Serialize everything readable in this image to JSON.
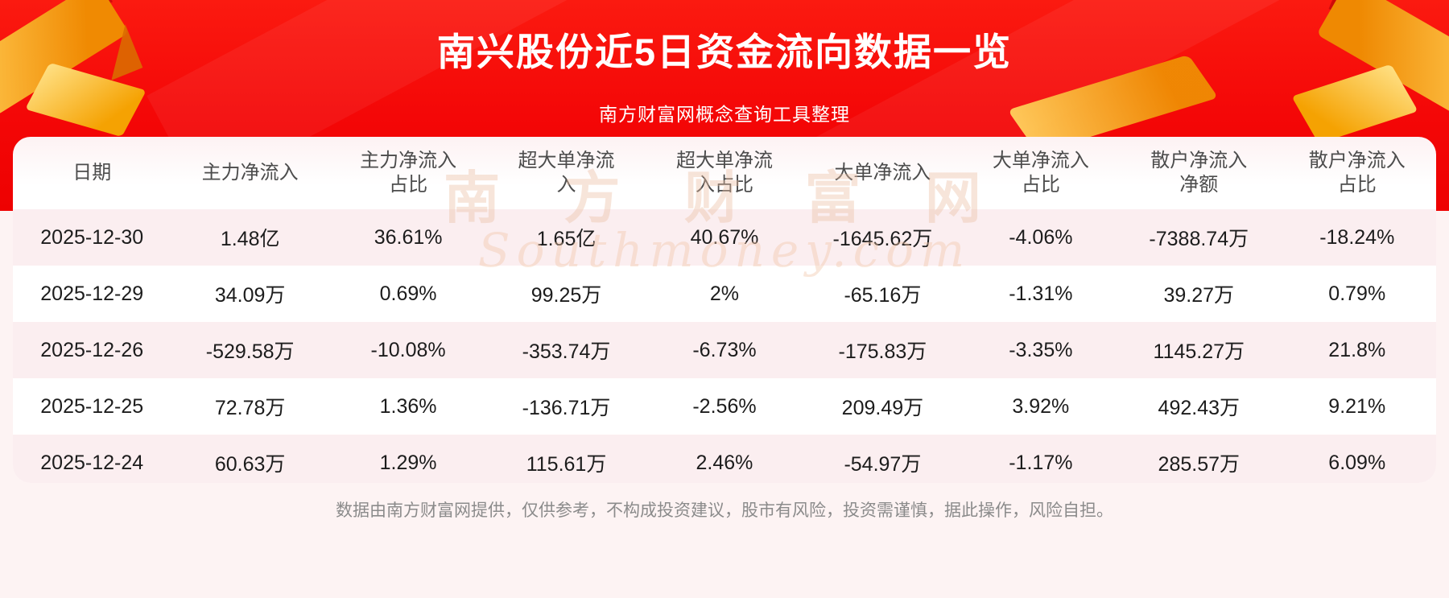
{
  "header": {
    "title": "南兴股份近5日资金流向数据一览",
    "subtitle": "南方财富网概念查询工具整理"
  },
  "table": {
    "columns_display": [
      "日期",
      "主力净流入",
      "主力净流入\n占比",
      "超大单净流\n入",
      "超大单净流\n入占比",
      "大单净流入",
      "大单净流入\n占比",
      "散户净流入\n净额",
      "散户净流入\n占比"
    ],
    "rows": [
      [
        "2025-12-30",
        "1.48亿",
        "36.61%",
        "1.65亿",
        "40.67%",
        "-1645.62万",
        "-4.06%",
        "-7388.74万",
        "-18.24%"
      ],
      [
        "2025-12-29",
        "34.09万",
        "0.69%",
        "99.25万",
        "2%",
        "-65.16万",
        "-1.31%",
        "39.27万",
        "0.79%"
      ],
      [
        "2025-12-26",
        "-529.58万",
        "-10.08%",
        "-353.74万",
        "-6.73%",
        "-175.83万",
        "-3.35%",
        "1145.27万",
        "21.8%"
      ],
      [
        "2025-12-25",
        "72.78万",
        "1.36%",
        "-136.71万",
        "-2.56%",
        "209.49万",
        "3.92%",
        "492.43万",
        "9.21%"
      ],
      [
        "2025-12-24",
        "60.63万",
        "1.29%",
        "115.61万",
        "2.46%",
        "-54.97万",
        "-1.17%",
        "285.57万",
        "6.09%"
      ]
    ]
  },
  "watermark": {
    "cn": "南 方 财 富 网",
    "en": "Southmoney.com"
  },
  "footer": {
    "disclaimer": "数据由南方财富网提供，仅供参考，不构成投资建议，股市有风险，投资需谨慎，据此操作，风险自担。"
  },
  "colors": {
    "hero_red": "#f40707",
    "row_pink": "#fbeef0",
    "gold_accent": "#f5a202",
    "text_dark": "#1c1c1c",
    "header_gray": "#4c4c4c",
    "footer_gray": "#8b8b8b"
  },
  "chart_data": {
    "type": "table",
    "title": "南兴股份近5日资金流向数据一览",
    "subtitle": "南方财富网概念查询工具整理",
    "columns": [
      "日期",
      "主力净流入",
      "主力净流入占比",
      "超大单净流入",
      "超大单净流入占比",
      "大单净流入",
      "大单净流入占比",
      "散户净流入净额",
      "散户净流入占比"
    ],
    "rows": [
      [
        "2025-12-30",
        "1.48亿",
        "36.61%",
        "1.65亿",
        "40.67%",
        "-1645.62万",
        "-4.06%",
        "-7388.74万",
        "-18.24%"
      ],
      [
        "2025-12-29",
        "34.09万",
        "0.69%",
        "99.25万",
        "2%",
        "-65.16万",
        "-1.31%",
        "39.27万",
        "0.79%"
      ],
      [
        "2025-12-26",
        "-529.58万",
        "-10.08%",
        "-353.74万",
        "-6.73%",
        "-175.83万",
        "-3.35%",
        "1145.27万",
        "21.8%"
      ],
      [
        "2025-12-25",
        "72.78万",
        "1.36%",
        "-136.71万",
        "-2.56%",
        "209.49万",
        "3.92%",
        "492.43万",
        "9.21%"
      ],
      [
        "2025-12-24",
        "60.63万",
        "1.29%",
        "115.61万",
        "2.46%",
        "-54.97万",
        "-1.17%",
        "285.57万",
        "6.09%"
      ]
    ]
  }
}
